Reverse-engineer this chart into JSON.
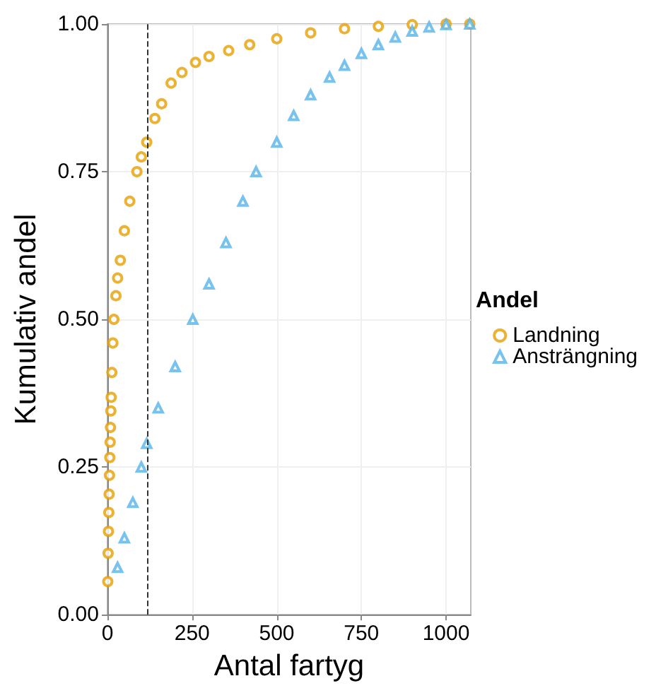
{
  "chart_data": {
    "type": "scatter",
    "xlabel": "Antal fartyg",
    "ylabel": "Kumulativ andel",
    "legend_title": "Andel",
    "xlim": [
      0,
      1073
    ],
    "xticks": [
      0,
      250,
      500,
      750,
      1000
    ],
    "ylim": [
      0,
      1
    ],
    "yticks": [
      {
        "value": 0,
        "label": "0.00"
      },
      {
        "value": 0.25,
        "label": "0.25"
      },
      {
        "value": 0.5,
        "label": "0.50"
      },
      {
        "value": 0.75,
        "label": "0.75"
      },
      {
        "value": 1,
        "label": "1.00"
      }
    ],
    "grid": true,
    "legend": "right",
    "ref_lines": [
      {
        "axis": "x",
        "value": 116,
        "color": "#333333",
        "line_style": "dashed"
      }
    ],
    "series": [
      {
        "name": "Landning",
        "color": "#e69f00",
        "marker": "circle",
        "x": [
          1,
          2,
          3,
          4,
          5,
          6,
          7,
          8,
          9,
          10,
          11,
          13,
          16,
          19,
          25,
          30,
          38,
          50,
          66,
          87,
          100,
          116,
          140,
          160,
          188,
          220,
          260,
          300,
          358,
          420,
          500,
          600,
          700,
          800,
          900,
          1000,
          1070
        ],
        "values": [
          0.056,
          0.104,
          0.141,
          0.173,
          0.204,
          0.236,
          0.266,
          0.292,
          0.317,
          0.345,
          0.368,
          0.41,
          0.46,
          0.5,
          0.54,
          0.57,
          0.6,
          0.65,
          0.7,
          0.75,
          0.775,
          0.8,
          0.84,
          0.865,
          0.9,
          0.918,
          0.935,
          0.945,
          0.955,
          0.965,
          0.975,
          0.985,
          0.992,
          0.996,
          0.999,
          1,
          1
        ]
      },
      {
        "name": "Ansträngning",
        "color": "#56b4e9",
        "marker": "triangle",
        "x": [
          30,
          50,
          75,
          100,
          116,
          150,
          200,
          252,
          300,
          350,
          400,
          439,
          500,
          550,
          600,
          656,
          700,
          750,
          800,
          850,
          900,
          950,
          1000,
          1070
        ],
        "values": [
          0.08,
          0.13,
          0.19,
          0.25,
          0.29,
          0.35,
          0.42,
          0.5,
          0.56,
          0.63,
          0.7,
          0.75,
          0.8,
          0.845,
          0.88,
          0.91,
          0.93,
          0.95,
          0.965,
          0.978,
          0.988,
          0.995,
          0.999,
          1
        ]
      }
    ]
  }
}
